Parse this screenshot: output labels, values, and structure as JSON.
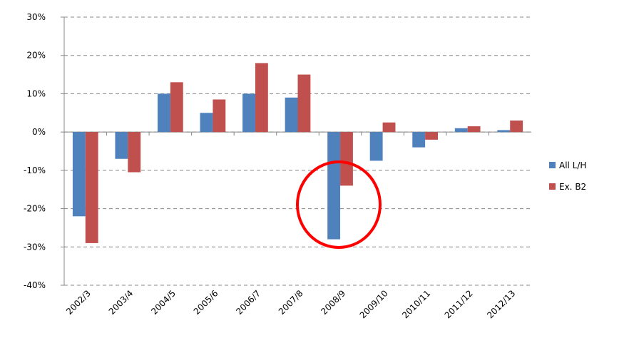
{
  "chart_data": {
    "type": "bar",
    "categories": [
      "2002/3",
      "2003/4",
      "2004/5",
      "2005/6",
      "2006/7",
      "2007/8",
      "2008/9",
      "2009/10",
      "2010/11",
      "2011/12",
      "2012/13"
    ],
    "series": [
      {
        "name": "All L/H",
        "color": "#4f81bd",
        "values": [
          -22,
          -7,
          10,
          5,
          10,
          9,
          -28,
          -7.5,
          -4,
          1,
          0.5
        ]
      },
      {
        "name": "Ex. B2",
        "color": "#c0504d",
        "values": [
          -29,
          -10.5,
          13,
          8.5,
          18,
          15,
          -14,
          2.5,
          -2,
          1.5,
          3
        ]
      }
    ],
    "ylim": [
      -40,
      30
    ],
    "yticks": [
      {
        "value": -40,
        "label": "-40%"
      },
      {
        "value": -30,
        "label": "-30%"
      },
      {
        "value": -20,
        "label": "-20%"
      },
      {
        "value": -10,
        "label": "-10%"
      },
      {
        "value": 0,
        "label": "0%"
      },
      {
        "value": 10,
        "label": "10%"
      },
      {
        "value": 20,
        "label": "20%"
      },
      {
        "value": 30,
        "label": "30%"
      }
    ],
    "grid": true,
    "legend": "right"
  }
}
